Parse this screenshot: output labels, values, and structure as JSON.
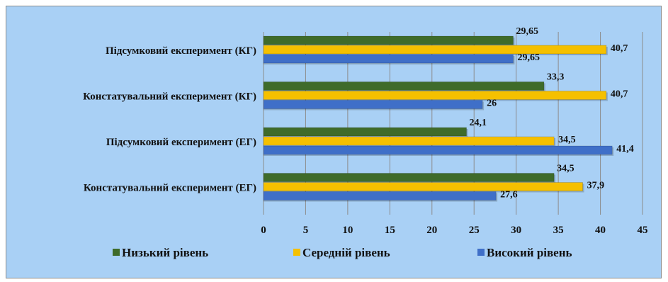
{
  "chart_data": {
    "type": "bar",
    "orientation": "horizontal",
    "categories": [
      "Констатувальний експеримент (ЕГ)",
      "Підсумковий експеримент (ЕГ)",
      "Констатувальний експеримент (КГ)",
      "Підсумковий експеримент (КГ)"
    ],
    "series": [
      {
        "name": "Низький рівень",
        "color": "#3f6b2a",
        "values": [
          34.5,
          24.1,
          33.3,
          29.65
        ],
        "labels": [
          "34,5",
          "24,1",
          "33,3",
          "29,65"
        ]
      },
      {
        "name": "Середній рівень",
        "color": "#f5c000",
        "values": [
          37.9,
          34.5,
          40.7,
          40.7
        ],
        "labels": [
          "37,9",
          "34,5",
          "40,7",
          "40,7"
        ]
      },
      {
        "name": "Високий рівень",
        "color": "#3f6fc8",
        "values": [
          27.6,
          41.4,
          26,
          29.65
        ],
        "labels": [
          "27,6",
          "41,4",
          "26",
          "29,65"
        ]
      }
    ],
    "xlim": [
      0,
      45
    ],
    "x_ticks": [
      "0",
      "5",
      "10",
      "15",
      "20",
      "25",
      "30",
      "35",
      "40",
      "45"
    ],
    "grid": true,
    "legend_position": "bottom",
    "title": "",
    "xlabel": "",
    "ylabel": ""
  }
}
